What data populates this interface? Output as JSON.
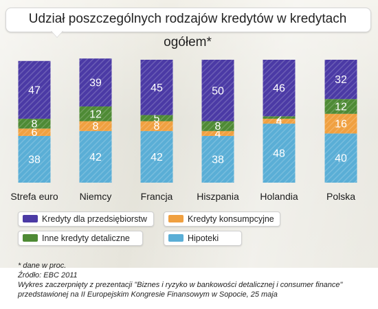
{
  "title": "Udział poszczególnych rodzajów kredytów w kredytach ogółem*",
  "chart_data": {
    "type": "bar",
    "stacked": true,
    "categories": [
      "Strefa euro",
      "Niemcy",
      "Francja",
      "Hiszpania",
      "Holandia",
      "Polska"
    ],
    "series": [
      {
        "name": "Hipoteki",
        "values": [
          38,
          42,
          42,
          38,
          48,
          40
        ],
        "color": "#5aaed6"
      },
      {
        "name": "Kredyty konsumpcyjne",
        "values": [
          6,
          8,
          8,
          4,
          4,
          16
        ],
        "color": "#f0a040"
      },
      {
        "name": "Inne kredyty detaliczne",
        "values": [
          8,
          12,
          5,
          8,
          2,
          12
        ],
        "color": "#4e8a35"
      },
      {
        "name": "Kredyty dla przedsiębiorstw",
        "values": [
          47,
          39,
          45,
          50,
          46,
          32
        ],
        "color": "#4b3aa5"
      }
    ],
    "ylim": [
      0,
      100
    ],
    "legend_position": "bottom"
  },
  "legend": [
    {
      "label": "Kredyty dla przedsiębiorstw",
      "color": "#4b3aa5"
    },
    {
      "label": "Kredyty konsumpcyjne",
      "color": "#f0a040"
    },
    {
      "label": "Inne kredyty detaliczne",
      "color": "#4e8a35"
    },
    {
      "label": "Hipoteki",
      "color": "#5aaed6"
    }
  ],
  "notes": {
    "unit": "* dane w proc.",
    "source": "Źródło: EBC 2011",
    "caption": "Wykres zaczerpnięty z prezentacji \"Biznes i ryzyko w bankowości detalicznej i consumer finance\" przedstawionej na II Europejskim Kongresie Finansowym w Sopocie, 25 maja"
  }
}
